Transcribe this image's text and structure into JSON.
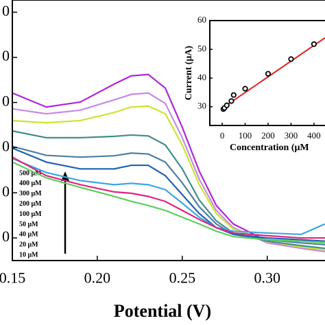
{
  "chart_data": [
    {
      "type": "line",
      "x_label": "Potential (V)",
      "x": [
        0.15,
        0.17,
        0.19,
        0.21,
        0.22,
        0.23,
        0.24,
        0.25,
        0.26,
        0.27,
        0.28,
        0.3,
        0.32,
        0.334
      ],
      "xlim": [
        0.15,
        0.334
      ],
      "xticks": [
        {
          "value": 0.15,
          "label": "0.15"
        },
        {
          "value": 0.2,
          "label": "0.20"
        },
        {
          "value": 0.25,
          "label": "0.25"
        },
        {
          "value": 0.3,
          "label": "0.30"
        }
      ],
      "ylim": [
        5,
        62.7
      ],
      "yticks": [
        {
          "value": 60,
          "label": "0"
        },
        {
          "value": 50,
          "label": "0"
        },
        {
          "value": 40,
          "label": "0"
        },
        {
          "value": 30,
          "label": "0"
        },
        {
          "value": 20,
          "label": "0"
        },
        {
          "value": 10,
          "label": "0"
        }
      ],
      "series": [
        {
          "name": "500 μM",
          "color": "#b025d6",
          "values": [
            42.1,
            39.0,
            40.1,
            44.1,
            45.9,
            46.2,
            43.2,
            34.5,
            24.8,
            17.2,
            13.1,
            9.3,
            7.7,
            7.0
          ]
        },
        {
          "name": "400 μM",
          "color": "#c78ae6",
          "values": [
            38.6,
            37.5,
            38.3,
            40.6,
            41.8,
            42.1,
            39.8,
            32.2,
            23.0,
            16.1,
            12.3,
            8.9,
            7.7,
            7.0
          ]
        },
        {
          "name": "300 μM",
          "color": "#c9e62e",
          "values": [
            36.0,
            35.5,
            36.0,
            37.8,
            39.0,
            39.2,
            37.5,
            30.6,
            21.8,
            15.4,
            12.0,
            9.3,
            8.0,
            7.4
          ]
        },
        {
          "name": "200 μM",
          "color": "#3f8f8c",
          "values": [
            33.7,
            32.2,
            32.2,
            32.5,
            32.8,
            32.6,
            30.6,
            25.3,
            18.4,
            13.8,
            11.1,
            9.3,
            8.3,
            7.7
          ]
        },
        {
          "name": "100 μM",
          "color": "#4b7fa3",
          "values": [
            30.3,
            28.3,
            27.9,
            28.2,
            28.8,
            28.6,
            26.8,
            22.2,
            16.9,
            13.1,
            10.8,
            9.6,
            8.9,
            8.5
          ]
        },
        {
          "name": "50 μM",
          "color": "#1f5fb3",
          "values": [
            29.9,
            26.8,
            25.3,
            25.3,
            26.1,
            26.1,
            23.8,
            19.6,
            15.4,
            12.3,
            10.8,
            10.0,
            9.6,
            9.3
          ]
        },
        {
          "name": "40 μM",
          "color": "#3aa6e3",
          "values": [
            27.6,
            24.5,
            22.7,
            21.8,
            22.1,
            21.8,
            20.7,
            17.7,
            14.6,
            12.3,
            11.5,
            11.1,
            10.8,
            13.1
          ]
        },
        {
          "name": "20 μM",
          "color": "#e0247f",
          "values": [
            27.9,
            23.8,
            21.8,
            20.2,
            19.9,
            19.2,
            18.1,
            16.1,
            14.1,
            12.3,
            11.1,
            10.5,
            10.0,
            10.0
          ]
        },
        {
          "name": "10 μM",
          "color": "#5ccf5c",
          "values": [
            26.8,
            23.3,
            21.2,
            19.2,
            18.1,
            17.2,
            16.1,
            14.6,
            13.1,
            11.5,
            10.3,
            9.6,
            9.3,
            8.9
          ]
        }
      ]
    },
    {
      "type": "scatter",
      "x_label": "Concentration (μM",
      "y_label": "Current (μA)",
      "x": [
        5,
        10,
        20,
        40,
        50,
        100,
        200,
        300,
        400
      ],
      "values": [
        29.2,
        29.6,
        30.5,
        32.0,
        34.1,
        36.3,
        41.5,
        46.6,
        51.8
      ],
      "color": "#000000",
      "fit_line": {
        "color": "#e02020",
        "x": [
          0,
          448
        ],
        "y": [
          29.5,
          54.0
        ]
      },
      "xlim": [
        -54,
        448
      ],
      "xticks": [
        0,
        100,
        200,
        300,
        400
      ],
      "ylim": [
        23.5,
        60
      ],
      "yticks": [
        30,
        40,
        50,
        60
      ]
    }
  ]
}
